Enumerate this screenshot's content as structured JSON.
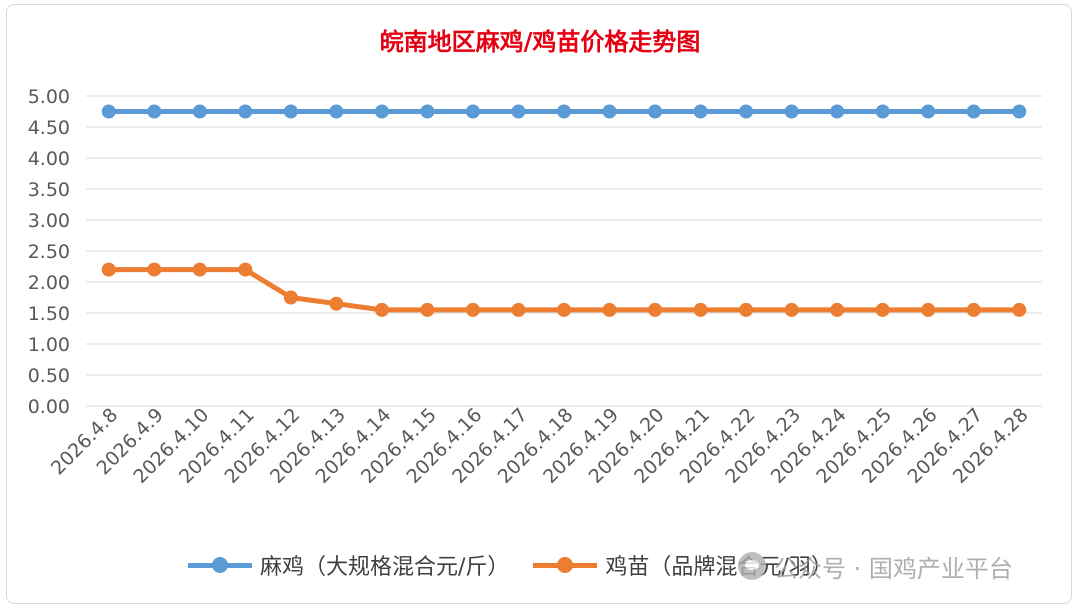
{
  "colors": {
    "title": "#e60012",
    "series_1": "#5b9bd5",
    "series_2": "#ed7d31",
    "grid": "#d9d9d9",
    "tick": "#595959"
  },
  "chart_data": {
    "type": "line",
    "title": "皖南地区麻鸡/鸡苗价格走势图",
    "xlabel": "",
    "ylabel": "",
    "ylim": [
      0,
      5
    ],
    "yticks": [
      "0.00",
      "0.50",
      "1.00",
      "1.50",
      "2.00",
      "2.50",
      "3.00",
      "3.50",
      "4.00",
      "4.50",
      "5.00"
    ],
    "grid": true,
    "legend_position": "bottom",
    "categories": [
      "2026.4.8",
      "2026.4.9",
      "2026.4.10",
      "2026.4.11",
      "2026.4.12",
      "2026.4.13",
      "2026.4.14",
      "2026.4.15",
      "2026.4.16",
      "2026.4.17",
      "2026.4.18",
      "2026.4.19",
      "2026.4.20",
      "2026.4.21",
      "2026.4.22",
      "2026.4.23",
      "2026.4.24",
      "2026.4.25",
      "2026.4.26",
      "2026.4.27",
      "2026.4.28"
    ],
    "series": [
      {
        "name": "麻鸡（大规格混合元/斤）",
        "color": "#5b9bd5",
        "values": [
          4.75,
          4.75,
          4.75,
          4.75,
          4.75,
          4.75,
          4.75,
          4.75,
          4.75,
          4.75,
          4.75,
          4.75,
          4.75,
          4.75,
          4.75,
          4.75,
          4.75,
          4.75,
          4.75,
          4.75,
          4.75
        ]
      },
      {
        "name": "鸡苗（品牌混合元/羽）",
        "color": "#ed7d31",
        "values": [
          2.2,
          2.2,
          2.2,
          2.2,
          1.75,
          1.65,
          1.55,
          1.55,
          1.55,
          1.55,
          1.55,
          1.55,
          1.55,
          1.55,
          1.55,
          1.55,
          1.55,
          1.55,
          1.55,
          1.55,
          1.55
        ]
      }
    ]
  },
  "watermark": {
    "text": "公众号 · 国鸡产业平台",
    "icon": "wechat-icon"
  }
}
